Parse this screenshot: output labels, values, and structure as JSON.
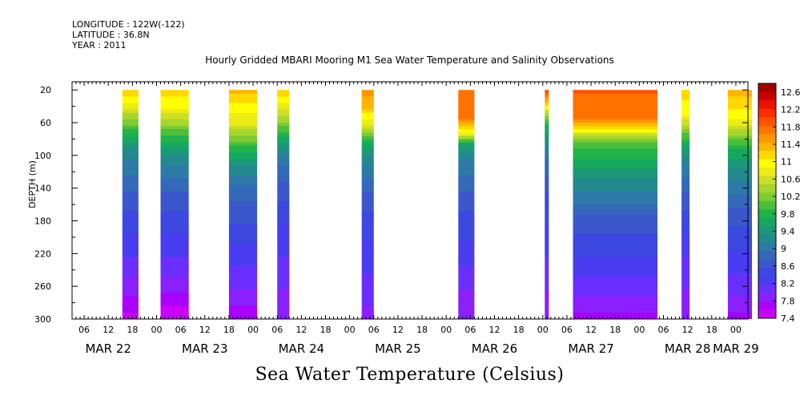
{
  "header": {
    "longitude": "LONGITUDE : 122W(-122)",
    "latitude": "LATITUDE : 36.8N",
    "year": "YEAR : 2011"
  },
  "chart_data": {
    "type": "heatmap",
    "title": "Hourly Gridded MBARI Mooring M1 Sea Water Temperature and Salinity Observations",
    "bottom_title": "Sea Water Temperature (Celsius)",
    "ylabel": "DEPTH (m)",
    "xlabel": "",
    "x_units": "hours since MAR 22 00:00, 2011",
    "xlim": [
      3,
      171
    ],
    "ylim": [
      300,
      10
    ],
    "y_ticks": [
      20,
      60,
      100,
      140,
      180,
      220,
      260,
      300
    ],
    "x_hour_ticks": [
      {
        "h": 6,
        "label": "06"
      },
      {
        "h": 12,
        "label": "12"
      },
      {
        "h": 18,
        "label": "18"
      },
      {
        "h": 24,
        "label": "00"
      },
      {
        "h": 30,
        "label": "06"
      },
      {
        "h": 36,
        "label": "12"
      },
      {
        "h": 42,
        "label": "18"
      },
      {
        "h": 48,
        "label": "00"
      },
      {
        "h": 54,
        "label": "06"
      },
      {
        "h": 60,
        "label": "12"
      },
      {
        "h": 66,
        "label": "18"
      },
      {
        "h": 72,
        "label": "00"
      },
      {
        "h": 78,
        "label": "06"
      },
      {
        "h": 84,
        "label": "12"
      },
      {
        "h": 90,
        "label": "18"
      },
      {
        "h": 96,
        "label": "00"
      },
      {
        "h": 102,
        "label": "06"
      },
      {
        "h": 108,
        "label": "12"
      },
      {
        "h": 114,
        "label": "18"
      },
      {
        "h": 120,
        "label": "00"
      },
      {
        "h": 126,
        "label": "06"
      },
      {
        "h": 132,
        "label": "12"
      },
      {
        "h": 138,
        "label": "18"
      },
      {
        "h": 144,
        "label": "00"
      },
      {
        "h": 150,
        "label": "06"
      },
      {
        "h": 156,
        "label": "12"
      },
      {
        "h": 162,
        "label": "18"
      },
      {
        "h": 168,
        "label": "00"
      }
    ],
    "x_day_labels": [
      {
        "h": 12,
        "label": "MAR 22"
      },
      {
        "h": 36,
        "label": "MAR 23"
      },
      {
        "h": 60,
        "label": "MAR 24"
      },
      {
        "h": 84,
        "label": "MAR 25"
      },
      {
        "h": 108,
        "label": "MAR 26"
      },
      {
        "h": 132,
        "label": "MAR 27"
      },
      {
        "h": 156,
        "label": "MAR 28"
      },
      {
        "h": 168,
        "label": "MAR 29"
      }
    ],
    "colorbar": {
      "levels": [
        7.4,
        7.6,
        7.8,
        8.0,
        8.2,
        8.4,
        8.6,
        8.8,
        9.0,
        9.2,
        9.4,
        9.6,
        9.8,
        10.0,
        10.2,
        10.4,
        10.6,
        10.8,
        11.0,
        11.2,
        11.4,
        11.6,
        11.8,
        12.0,
        12.2,
        12.4,
        12.6,
        12.8
      ],
      "tick_labels": [
        "7.4",
        "7.8",
        "8.2",
        "8.6",
        "9",
        "9.4",
        "9.8",
        "10.2",
        "10.6",
        "11",
        "11.4",
        "11.8",
        "12.2",
        "12.6"
      ],
      "colors": [
        "#cc00ff",
        "#aa00ff",
        "#8a1fff",
        "#6a2fff",
        "#4a3cf0",
        "#3c48e0",
        "#3a58cc",
        "#3468b8",
        "#2d7aa8",
        "#23898e",
        "#1a9878",
        "#16a85e",
        "#21b24a",
        "#4cbe3c",
        "#7ccc32",
        "#a6d62c",
        "#ccdf26",
        "#ecec14",
        "#ffff00",
        "#ffd800",
        "#ffb400",
        "#ff9500",
        "#ff7200",
        "#ff5200",
        "#ff2e00",
        "#e81400",
        "#c80000",
        "#a00000"
      ]
    },
    "segments": [
      {
        "start": 15.5,
        "end": 19.5,
        "profile": [
          [
            20,
            11.3
          ],
          [
            40,
            10.8
          ],
          [
            60,
            10.2
          ],
          [
            80,
            9.6
          ],
          [
            100,
            9.2
          ],
          [
            140,
            8.8
          ],
          [
            180,
            8.5
          ],
          [
            220,
            8.2
          ],
          [
            260,
            7.9
          ],
          [
            280,
            7.7
          ],
          [
            300,
            7.5
          ]
        ]
      },
      {
        "start": 25.0,
        "end": 32.0,
        "profile": [
          [
            20,
            11.3
          ],
          [
            40,
            11.0
          ],
          [
            60,
            10.4
          ],
          [
            80,
            9.8
          ],
          [
            100,
            9.3
          ],
          [
            140,
            8.8
          ],
          [
            180,
            8.5
          ],
          [
            220,
            8.2
          ],
          [
            260,
            7.9
          ],
          [
            280,
            7.6
          ],
          [
            300,
            7.45
          ]
        ]
      },
      {
        "start": 42.0,
        "end": 49.0,
        "profile": [
          [
            20,
            11.4
          ],
          [
            40,
            11.1
          ],
          [
            60,
            10.8
          ],
          [
            80,
            10.2
          ],
          [
            100,
            9.6
          ],
          [
            140,
            8.9
          ],
          [
            180,
            8.6
          ],
          [
            220,
            8.3
          ],
          [
            260,
            8.0
          ],
          [
            280,
            7.8
          ],
          [
            300,
            7.7
          ]
        ]
      },
      {
        "start": 54.0,
        "end": 57.0,
        "profile": [
          [
            20,
            11.3
          ],
          [
            40,
            10.9
          ],
          [
            60,
            10.3
          ],
          [
            80,
            9.6
          ],
          [
            100,
            9.1
          ],
          [
            140,
            8.7
          ],
          [
            180,
            8.4
          ],
          [
            220,
            8.2
          ],
          [
            260,
            8.0
          ],
          [
            300,
            7.8
          ]
        ]
      },
      {
        "start": 75.0,
        "end": 78.0,
        "profile": [
          [
            20,
            11.7
          ],
          [
            40,
            11.4
          ],
          [
            60,
            10.8
          ],
          [
            80,
            9.8
          ],
          [
            100,
            9.3
          ],
          [
            140,
            8.8
          ],
          [
            180,
            8.5
          ],
          [
            220,
            8.3
          ],
          [
            260,
            8.1
          ],
          [
            300,
            7.9
          ]
        ]
      },
      {
        "start": 99.0,
        "end": 103.0,
        "profile": [
          [
            20,
            11.9
          ],
          [
            55,
            11.8
          ],
          [
            70,
            11.0
          ],
          [
            85,
            9.6
          ],
          [
            100,
            9.2
          ],
          [
            140,
            8.8
          ],
          [
            180,
            8.5
          ],
          [
            220,
            8.3
          ],
          [
            260,
            8.0
          ],
          [
            300,
            7.8
          ]
        ]
      },
      {
        "start": 120.5,
        "end": 121.5,
        "profile": [
          [
            20,
            12.0
          ],
          [
            40,
            11.0
          ],
          [
            60,
            9.8
          ],
          [
            100,
            9.0
          ],
          [
            140,
            8.6
          ],
          [
            180,
            8.4
          ],
          [
            220,
            8.2
          ],
          [
            260,
            8.0
          ],
          [
            300,
            7.8
          ]
        ]
      },
      {
        "start": 127.5,
        "end": 148.5,
        "profile": [
          [
            20,
            12.0
          ],
          [
            50,
            11.9
          ],
          [
            65,
            11.3
          ],
          [
            80,
            10.2
          ],
          [
            100,
            9.8
          ],
          [
            140,
            9.2
          ],
          [
            180,
            8.7
          ],
          [
            220,
            8.4
          ],
          [
            260,
            8.1
          ],
          [
            280,
            7.9
          ],
          [
            300,
            7.7
          ]
        ]
      },
      {
        "start": 154.5,
        "end": 156.5,
        "profile": [
          [
            20,
            11.3
          ],
          [
            50,
            11.0
          ],
          [
            70,
            10.2
          ],
          [
            100,
            9.3
          ],
          [
            140,
            8.8
          ],
          [
            180,
            8.5
          ],
          [
            220,
            8.2
          ],
          [
            260,
            8.0
          ],
          [
            300,
            7.8
          ]
        ]
      },
      {
        "start": 166.0,
        "end": 172.0,
        "profile": [
          [
            20,
            11.5
          ],
          [
            50,
            11.1
          ],
          [
            70,
            10.5
          ],
          [
            90,
            9.8
          ],
          [
            120,
            9.3
          ],
          [
            160,
            8.8
          ],
          [
            200,
            8.5
          ],
          [
            240,
            8.2
          ],
          [
            270,
            8.0
          ],
          [
            300,
            7.7
          ]
        ]
      }
    ]
  }
}
